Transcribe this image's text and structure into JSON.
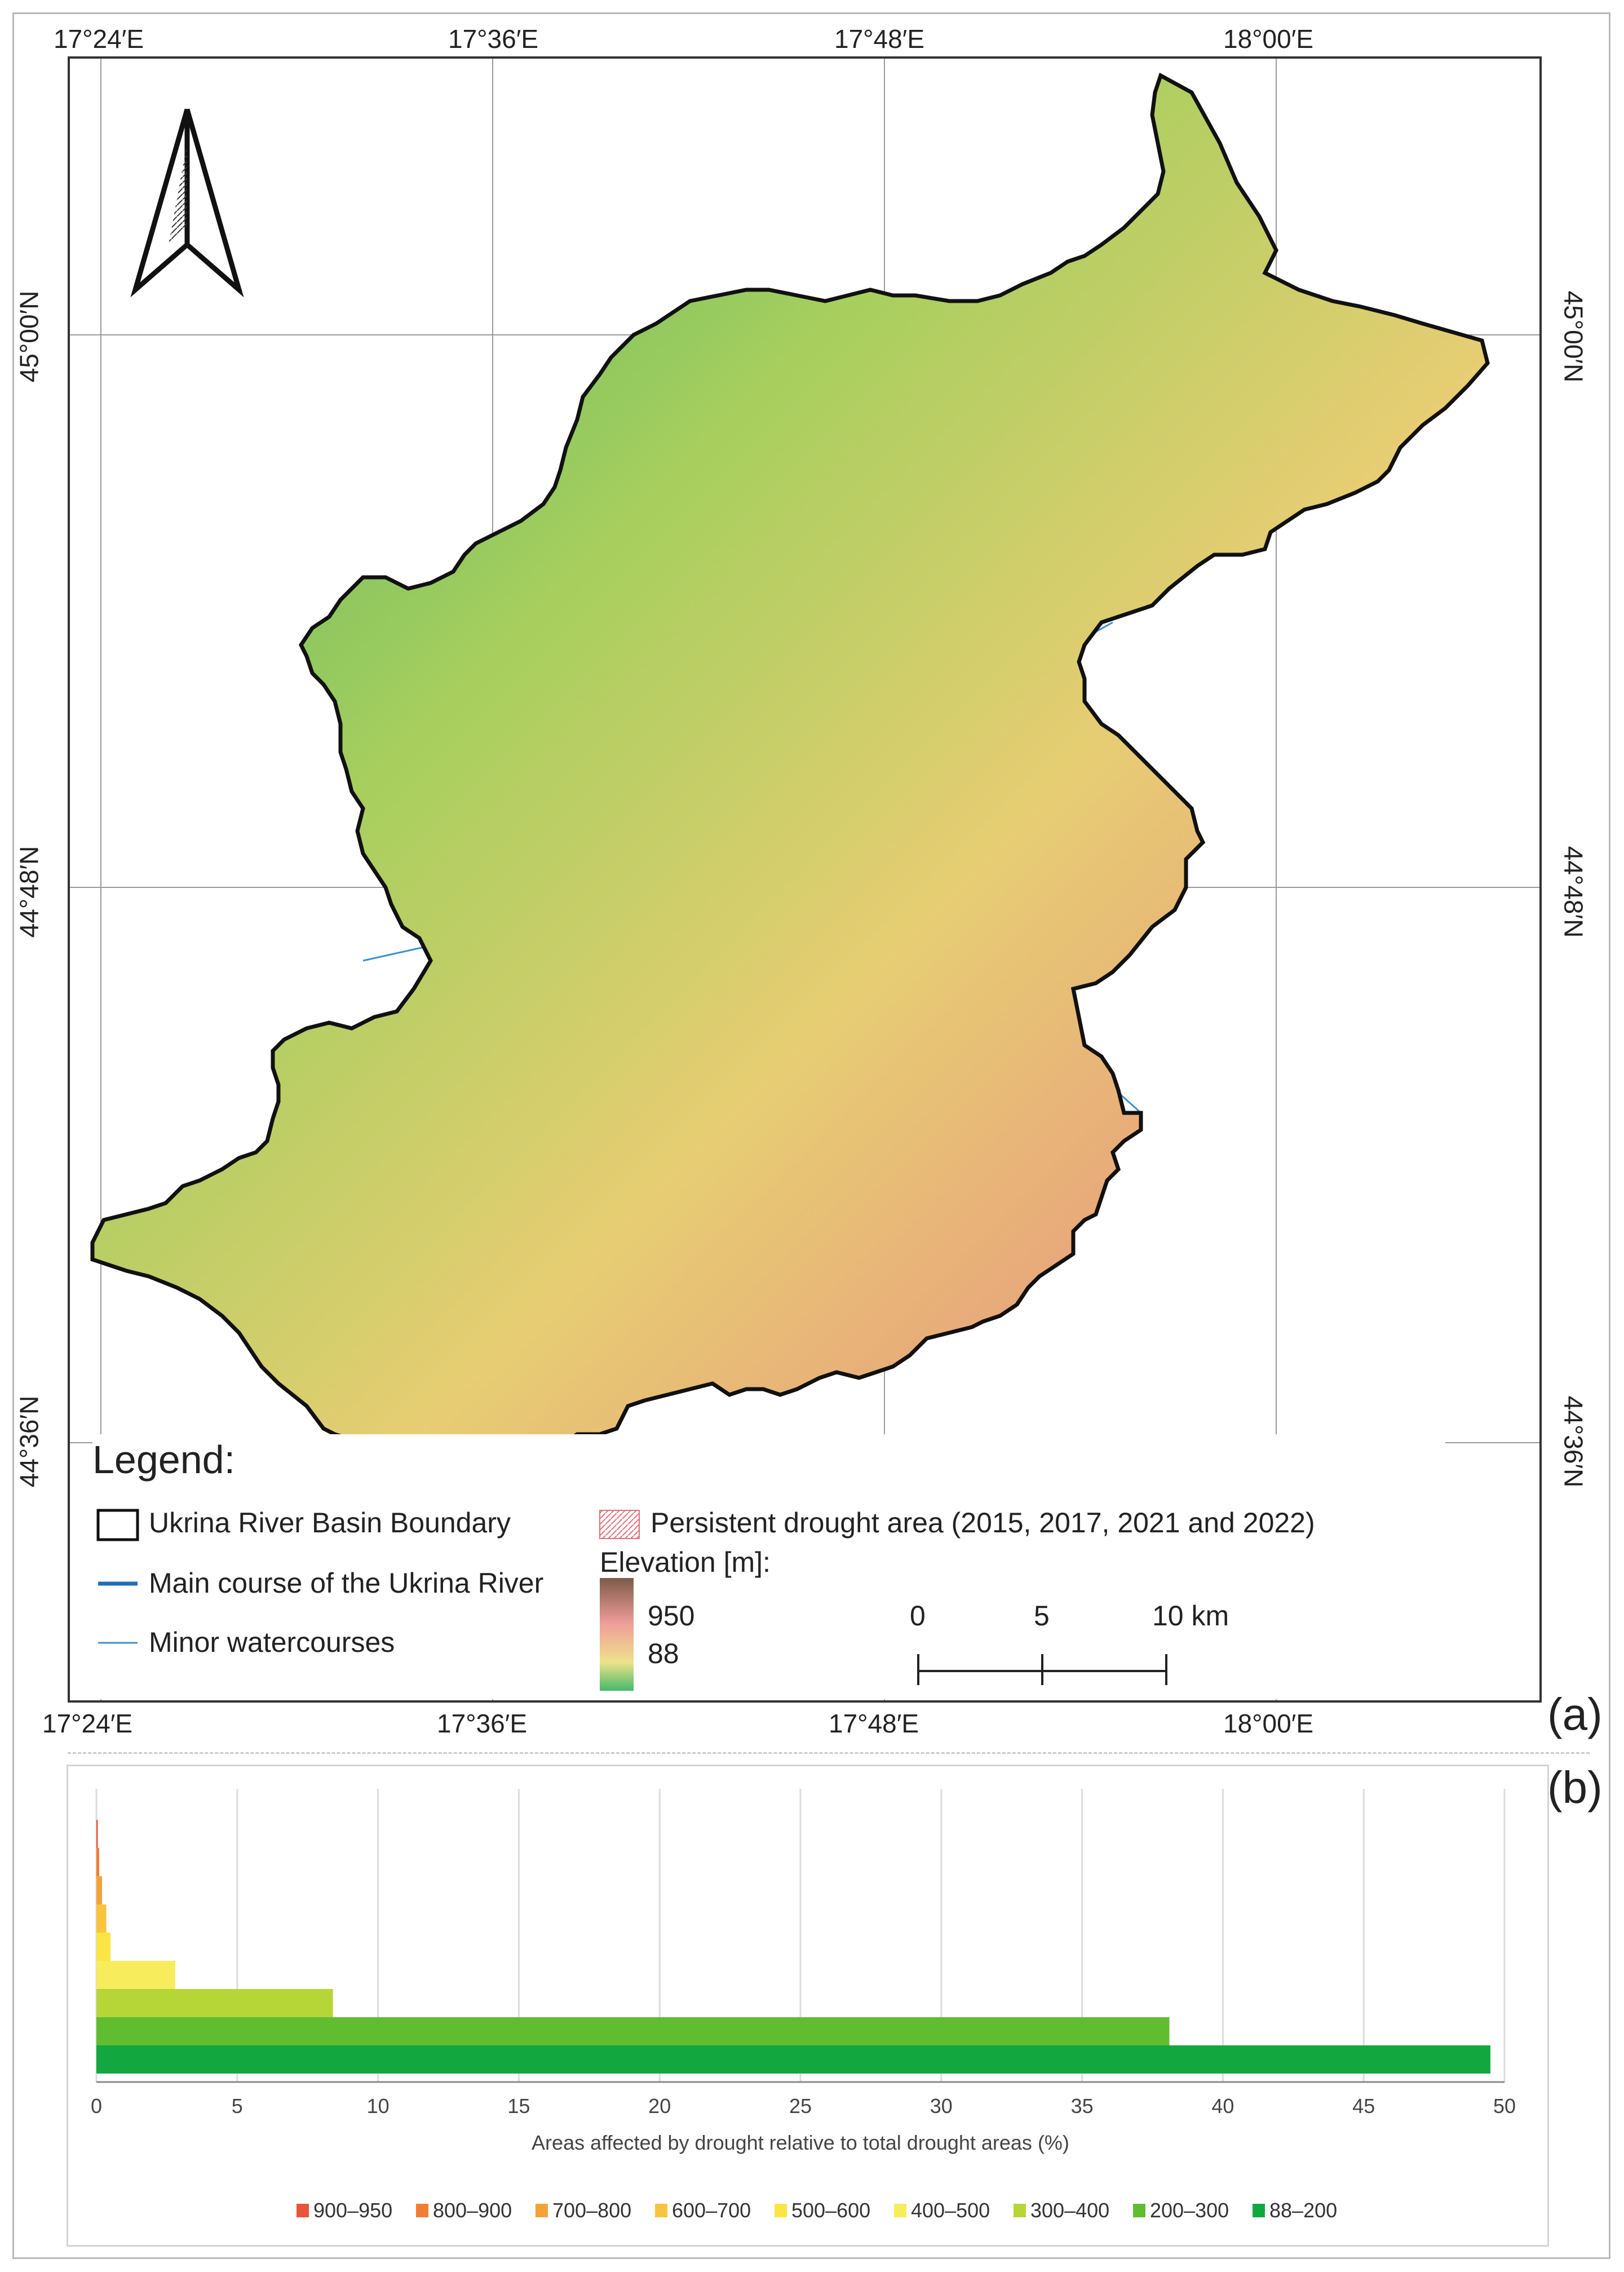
{
  "map": {
    "top_lon_labels": [
      "17°24′E",
      "17°36′E",
      "17°48′E",
      "18°00′E"
    ],
    "bottom_lon_labels": [
      "17°24′E",
      "17°36′E",
      "17°48′E",
      "18°00′E"
    ],
    "left_lat_labels": [
      "45°00′N",
      "44°48′N",
      "44°36′N"
    ],
    "right_lat_labels": [
      "45°00′N",
      "44°48′N",
      "44°36′N"
    ],
    "legend": {
      "title": "Legend:",
      "basin_boundary": "Ukrina River Basin Boundary",
      "main_course": "Main course of the Ukrina River",
      "minor_watercourses": "Minor watercourses",
      "drought_area": "Persistent drought area  (2015, 2017, 2021 and 2022)",
      "elevation_title": "Elevation [m]:",
      "elevation_max": "950",
      "elevation_min": "88",
      "scale_labels": [
        "0",
        "5",
        "10 km"
      ]
    },
    "colors": {
      "main_river": "#1f6fb8",
      "minor_river": "#3d8fd0",
      "drought_hatch": "#d7402b",
      "boundary": "#111111"
    },
    "icons": [
      "north-arrow-icon"
    ]
  },
  "panels": {
    "a": "(a)",
    "b": "(b)"
  },
  "chart_data": {
    "type": "bar",
    "orientation": "horizontal",
    "categories": [
      "900–950",
      "800–900",
      "700–800",
      "600–700",
      "500–600",
      "400–500",
      "300–400",
      "200–300",
      "88–200"
    ],
    "values": [
      0.05,
      0.1,
      0.2,
      0.35,
      0.5,
      2.8,
      8.4,
      38.1,
      49.5
    ],
    "colors": [
      "#e8553a",
      "#f07f36",
      "#f3a23a",
      "#f8c43b",
      "#fbe545",
      "#f7ec5c",
      "#b6d638",
      "#5fbd2f",
      "#13a83f"
    ],
    "xlabel": "Areas affected by drought relative to total drought areas (%)",
    "xlim": [
      0,
      50
    ],
    "xticks": [
      0,
      5,
      10,
      15,
      20,
      25,
      30,
      35,
      40,
      45,
      50
    ],
    "grid": true,
    "legend_placement": "bottom"
  }
}
